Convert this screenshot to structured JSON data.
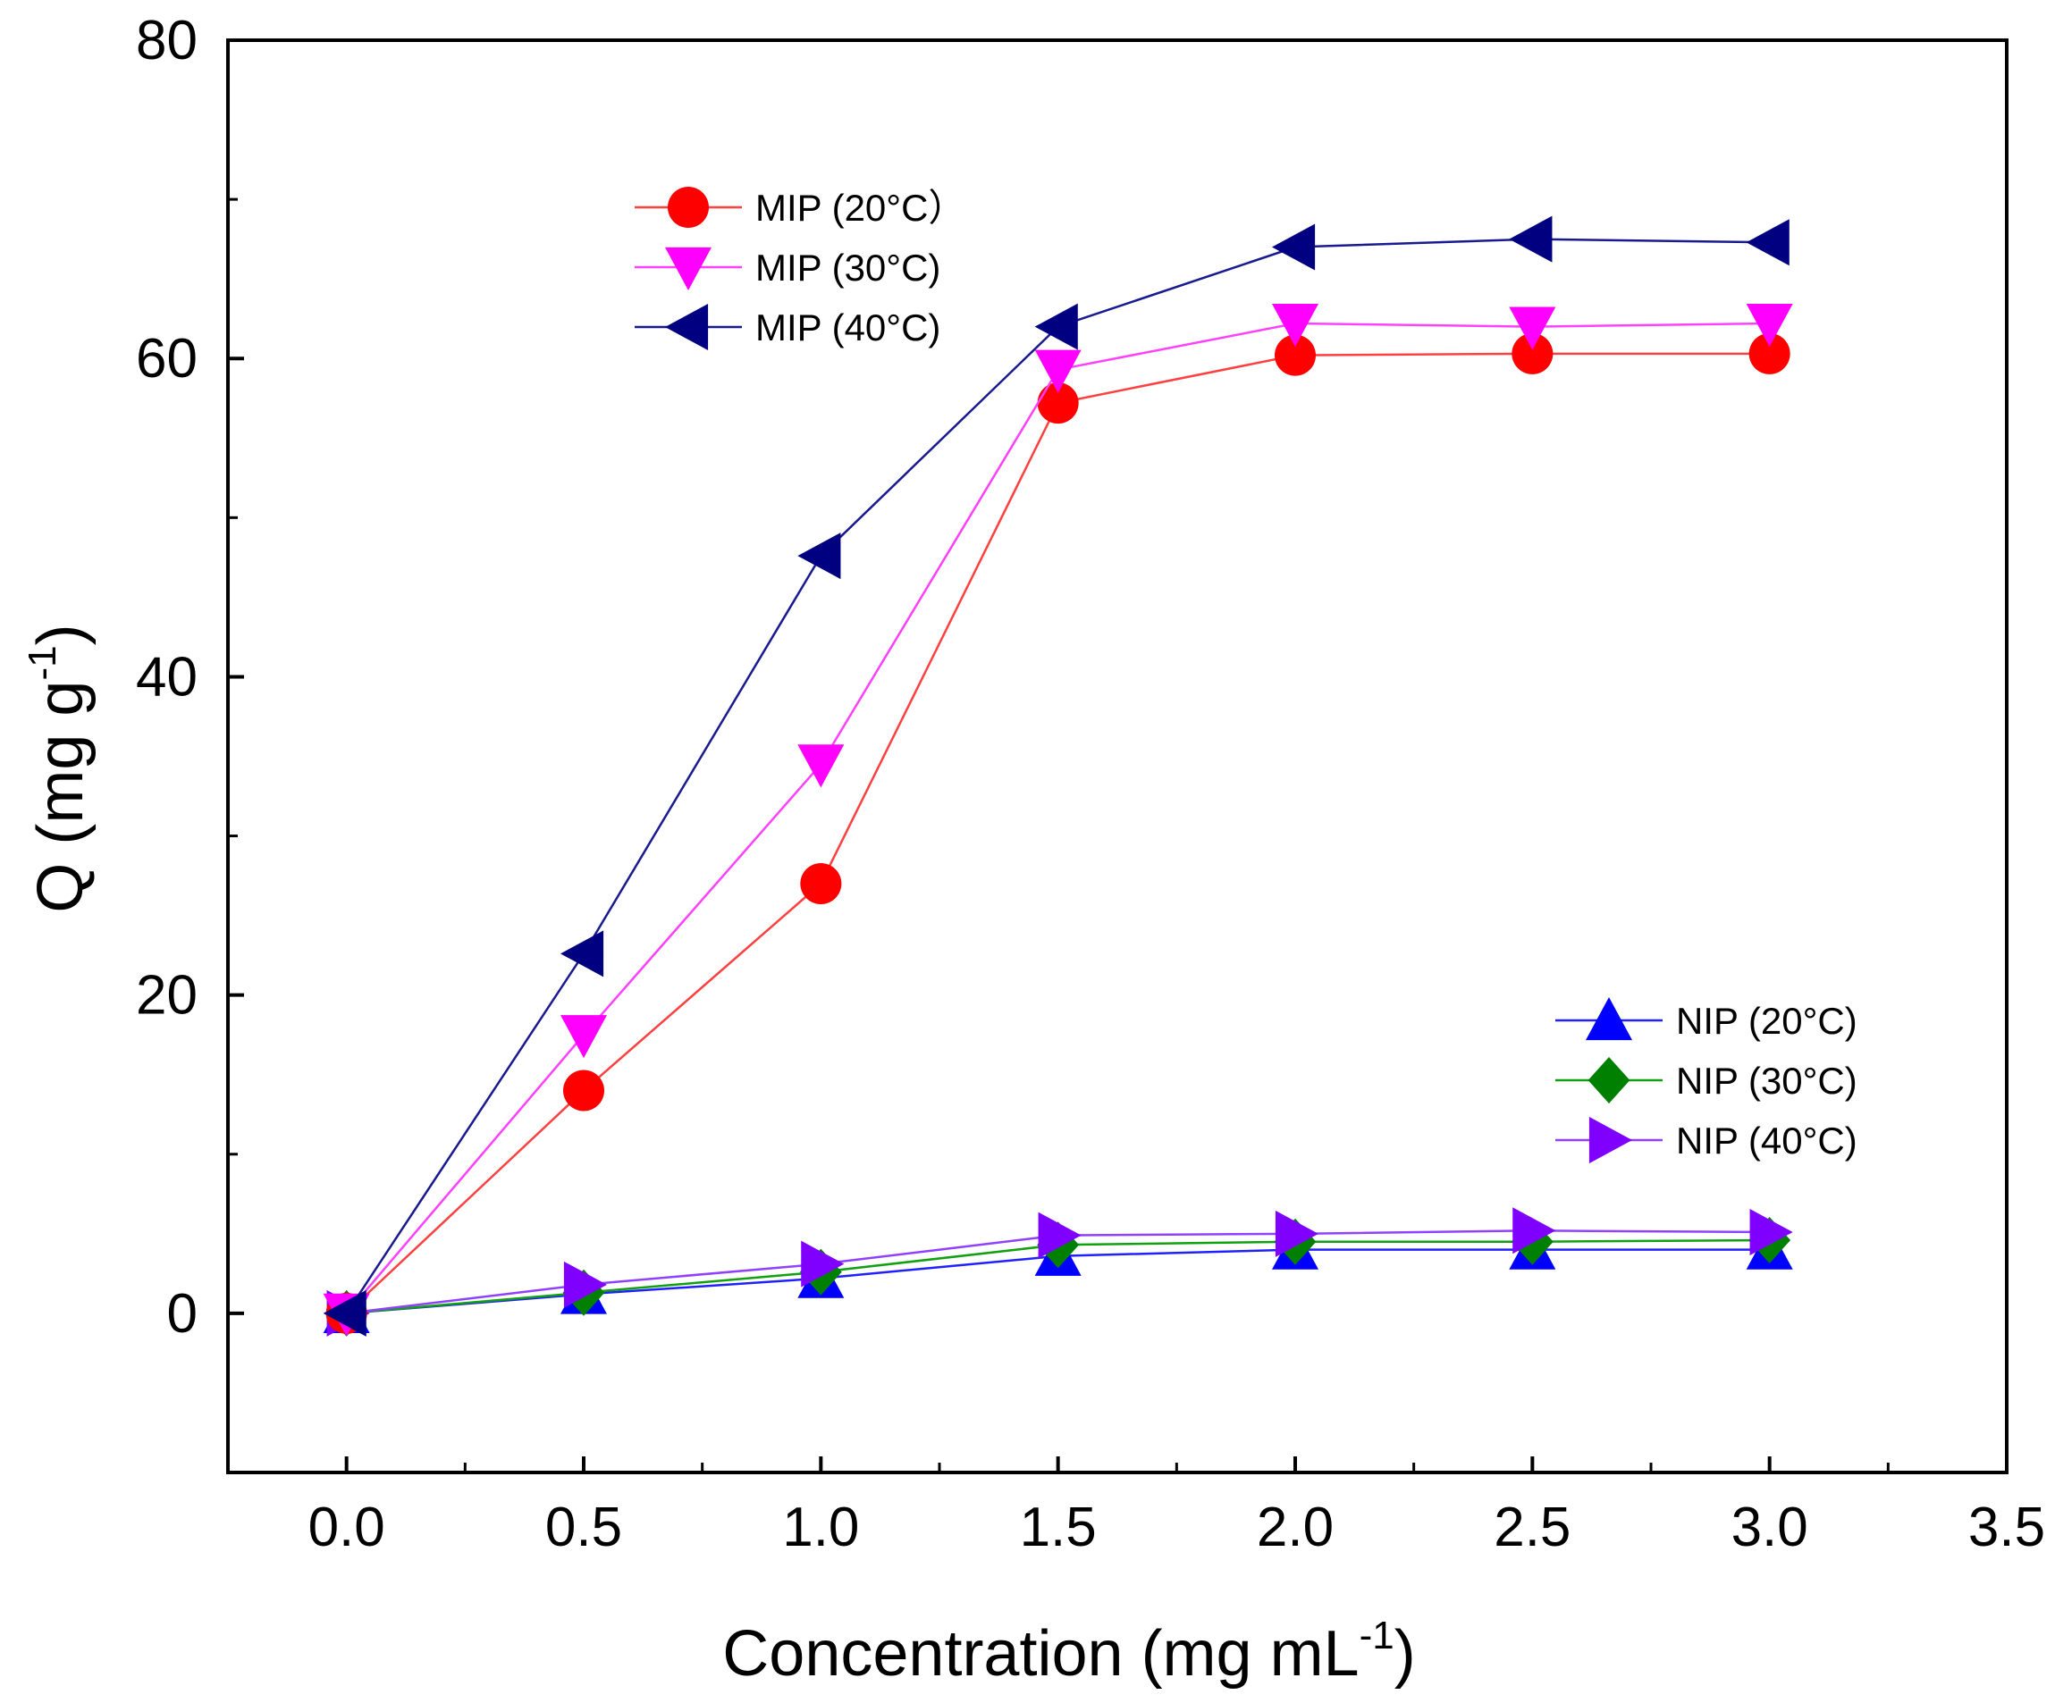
{
  "chart_data": {
    "type": "line",
    "xlabel": "Concentration (mg mL",
    "xlabel_sup": "-1",
    "xlabel_end": ")",
    "ylabel": "Q (mg g",
    "ylabel_sup": "-1",
    "ylabel_end": ")",
    "xlim": [
      -0.25,
      3.5
    ],
    "ylim": [
      -10,
      80
    ],
    "x_ticks": [
      0.0,
      0.5,
      1.0,
      1.5,
      2.0,
      2.5,
      3.0,
      3.5
    ],
    "x_tick_labels": [
      "0.0",
      "0.5",
      "1.0",
      "1.5",
      "2.0",
      "2.5",
      "3.0",
      "3.5"
    ],
    "y_ticks": [
      0,
      20,
      40,
      60,
      80
    ],
    "y_tick_labels": [
      "0",
      "20",
      "40",
      "60",
      "80"
    ],
    "x": [
      0.0,
      0.5,
      1.0,
      1.5,
      2.0,
      2.5,
      3.0
    ],
    "series": [
      {
        "name": "MIP (20°C）",
        "color": "#ff0000",
        "line": "#ff4040",
        "marker": "circle",
        "legend": "top-left",
        "values": [
          0,
          14.0,
          27.0,
          57.2,
          60.2,
          60.3,
          60.3
        ]
      },
      {
        "name": "MIP (30°C)",
        "color": "#ff00ff",
        "line": "#ff40ff",
        "marker": "triangle-down",
        "legend": "top-left",
        "values": [
          0,
          17.5,
          34.5,
          59.3,
          62.2,
          62.0,
          62.2
        ]
      },
      {
        "name": "MIP (40°C)",
        "color": "#000080",
        "line": "#1a1a90",
        "marker": "triangle-left",
        "legend": "top-left",
        "values": [
          0,
          22.6,
          47.6,
          62.0,
          67.0,
          67.5,
          67.3
        ]
      },
      {
        "name": "NIP (20°C)",
        "color": "#0000ff",
        "line": "#2020ff",
        "marker": "triangle-up",
        "legend": "bottom-right",
        "values": [
          0,
          1.2,
          2.2,
          3.6,
          4.0,
          4.0,
          4.0
        ]
      },
      {
        "name": "NIP (30°C)",
        "color": "#008000",
        "line": "#10a010",
        "marker": "diamond",
        "legend": "bottom-right",
        "values": [
          0,
          1.3,
          2.6,
          4.3,
          4.5,
          4.5,
          4.6
        ]
      },
      {
        "name": "NIP (40°C)",
        "color": "#8000ff",
        "line": "#9040ff",
        "marker": "triangle-right",
        "legend": "bottom-right",
        "values": [
          0,
          1.8,
          3.1,
          4.9,
          5.0,
          5.2,
          5.1
        ]
      }
    ]
  }
}
